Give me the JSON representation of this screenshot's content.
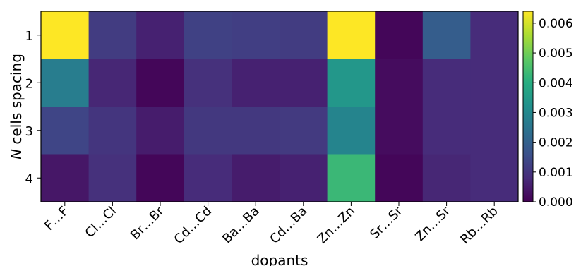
{
  "chart_data": {
    "type": "heatmap",
    "title": "",
    "xlabel": "dopants",
    "ylabel_parts": {
      "var": "N",
      "rest": " cells spacing"
    },
    "x_categories": [
      "F…F",
      "Cl…Cl",
      "Br…Br",
      "Cd…Cd",
      "Ba…Ba",
      "Cd…Ba",
      "Zn…Zn",
      "Sr…Sr",
      "Zn…Sr",
      "Rb…Rb"
    ],
    "y_categories": [
      "1",
      "2",
      "3",
      "4"
    ],
    "values": [
      [
        0.0064,
        0.00115,
        0.0006,
        0.00125,
        0.0012,
        0.00115,
        0.0064,
        0.0001,
        0.0019,
        0.0008
      ],
      [
        0.0027,
        0.0007,
        0.0001,
        0.0009,
        0.0006,
        0.0006,
        0.0034,
        0.0002,
        0.0008,
        0.0008
      ],
      [
        0.00135,
        0.001,
        0.0005,
        0.00105,
        0.00105,
        0.0011,
        0.0029,
        0.0002,
        0.0008,
        0.0008
      ],
      [
        0.0004,
        0.0009,
        0.0001,
        0.0008,
        0.0005,
        0.0006,
        0.0043,
        0.0001,
        0.0007,
        0.0008
      ]
    ],
    "colorbar": {
      "colormap": "viridis",
      "range": [
        0.0,
        0.0064
      ],
      "ticks": [
        0.0,
        0.001,
        0.002,
        0.003,
        0.004,
        0.005,
        0.006
      ],
      "tick_labels": [
        "0.000",
        "0.001",
        "0.002",
        "0.003",
        "0.004",
        "0.005",
        "0.006"
      ]
    }
  }
}
